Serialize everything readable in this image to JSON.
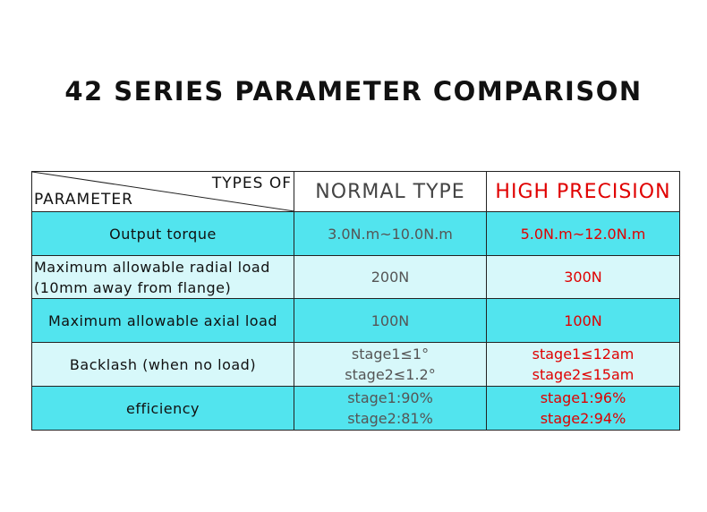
{
  "title": "42 SERIES PARAMETER COMPARISON",
  "table": {
    "corner": {
      "top": "TYPES OF",
      "bottom": "PARAMETER"
    },
    "columns": [
      "NORMAL TYPE",
      "HIGH PRECISION"
    ],
    "rows": [
      {
        "parameter": [
          "Output torque"
        ],
        "normal": [
          "3.0N.m~10.0N.m"
        ],
        "high": [
          "5.0N.m~12.0N.m"
        ]
      },
      {
        "parameter": [
          "Maximum allowable radial load",
          "(10mm away from flange)"
        ],
        "normal": [
          "200N"
        ],
        "high": [
          "300N"
        ]
      },
      {
        "parameter": [
          "Maximum allowable axial load"
        ],
        "normal": [
          "100N"
        ],
        "high": [
          "100N"
        ]
      },
      {
        "parameter": [
          "Backlash (when no load)"
        ],
        "normal": [
          "stage1≤1°",
          "stage2≤1.2°"
        ],
        "high": [
          "stage1≤12am",
          "stage2≤15am"
        ]
      },
      {
        "parameter": [
          "efficiency"
        ],
        "normal": [
          "stage1:90%",
          "stage2:81%"
        ],
        "high": [
          "stage1:96%",
          "stage2:94%"
        ]
      }
    ]
  }
}
